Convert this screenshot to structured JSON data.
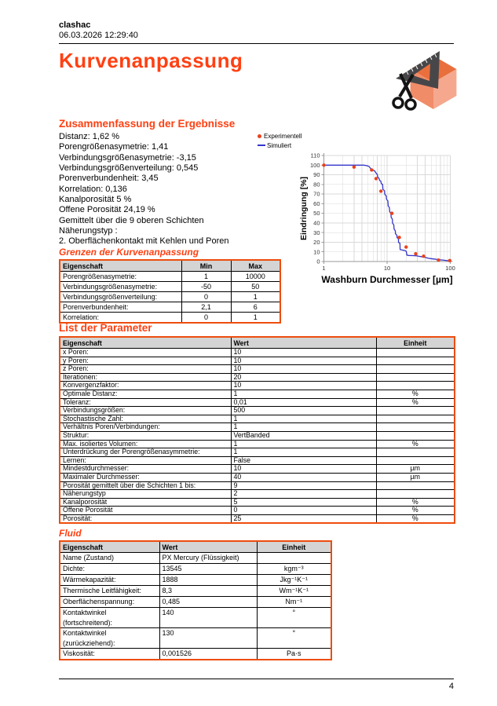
{
  "header": {
    "user": "clashac",
    "datetime": "06.03.2026 12:29:40"
  },
  "title": "Kurvenanpassung",
  "summary": {
    "heading": "Zusammenfassung der Ergebnisse",
    "lines": [
      "Distanz: 1,62 %",
      "Porengrößenasymetrie: 1,41",
      "Verbindungsgrößenasymetrie: -3,15",
      "Verbindungsgrößenverteilung: 0,545",
      "Porenverbundenheit: 3,45",
      "Korrelation: 0,136",
      "Kanalporosität 5 %",
      "Offene Porosität 24,19 %",
      "Gemittelt über die 9 oberen Schichten",
      "Näherungstyp :",
      "2. Oberflächenkontakt mit Kehlen und Poren"
    ]
  },
  "limits_table": {
    "heading": "Grenzen der Kurvenanpassung",
    "columns": [
      "Eigenschaft",
      "Min",
      "Max"
    ],
    "rows": [
      [
        "Porengrößenasymetrie:",
        "1",
        "10000"
      ],
      [
        "Verbindungsgrößenasymetrie:",
        "-50",
        "50"
      ],
      [
        "Verbindungsgrößenverteilung:",
        "0",
        "1"
      ],
      [
        "Porenverbundenheit:",
        "2,1",
        "6"
      ],
      [
        "Korrelation:",
        "0",
        "1"
      ]
    ]
  },
  "params_table": {
    "heading": "List der Parameter",
    "columns": [
      "Eigenschaft",
      "Wert",
      "Einheit"
    ],
    "rows": [
      [
        "x Poren:",
        "10",
        ""
      ],
      [
        "y Poren:",
        "10",
        ""
      ],
      [
        "z Poren:",
        "10",
        ""
      ],
      [
        "Iterationen:",
        "20",
        ""
      ],
      [
        "Konvergenzfaktor:",
        "10",
        ""
      ],
      [
        "Optimale Distanz:",
        "1",
        "%"
      ],
      [
        "Toleranz:",
        "0,01",
        "%"
      ],
      [
        "Verbindungsgrößen:",
        "500",
        ""
      ],
      [
        "Stochastische Zahl:",
        "1",
        ""
      ],
      [
        "Verhältnis Poren/Verbindungen:",
        "1",
        ""
      ],
      [
        "Struktur:",
        "VertBanded",
        ""
      ],
      [
        "Max. isoliertes Volumen:",
        "1",
        "%"
      ],
      [
        "Unterdrückung der Porengrößenasymmetrie:",
        "1",
        ""
      ],
      [
        "Lernen:",
        "False",
        ""
      ],
      [
        "Mindestdurchmesser:",
        "10",
        "µm"
      ],
      [
        "Maximaler Durchmesser:",
        "40",
        "µm"
      ],
      [
        "Porosität gemittelt über die Schichten 1 bis:",
        "9",
        ""
      ],
      [
        "Näherungstyp",
        "2",
        ""
      ],
      [
        "Kanalporosität",
        "5",
        "%"
      ],
      [
        "Offene Porosität",
        "0",
        "%"
      ],
      [
        "Porosität:",
        "25",
        "%"
      ]
    ]
  },
  "fluid_table": {
    "heading": "Fluid",
    "columns": [
      "Eigenschaft",
      "Wert",
      "Einheit"
    ],
    "rows": [
      [
        "Name (Zustand)",
        "PX Mercury (Flüssigkeit)",
        ""
      ],
      [
        "Dichte:",
        "13545",
        "kgm⁻³"
      ],
      [
        "Wärmekapazität:",
        "1888",
        "Jkg⁻¹K⁻¹"
      ],
      [
        "Thermische Leitfähigkeit:",
        "8,3",
        "Wm⁻¹K⁻¹"
      ],
      [
        "Oberflächenspannung:",
        "0,485",
        "Nm⁻¹"
      ],
      [
        "Kontaktwinkel\n(fortschreitend):",
        "140",
        "°"
      ],
      [
        "Kontaktwinkel\n(zurückziehend):",
        "130",
        "°"
      ],
      [
        "Viskosität:",
        "0,001526",
        "Pa·s"
      ]
    ]
  },
  "chart_data": {
    "type": "line",
    "xlabel": "Washburn Durchmesser [µm]",
    "ylabel": "Eindringung [%]",
    "x_scale": "log",
    "xlim": [
      1,
      100
    ],
    "ylim": [
      0,
      110
    ],
    "x_ticks": [
      1,
      10,
      100
    ],
    "y_ticks": [
      0,
      10,
      20,
      30,
      40,
      50,
      60,
      70,
      80,
      90,
      100,
      110
    ],
    "grid": true,
    "legend_position": "top-left-outside",
    "series": [
      {
        "name": "Experimentell",
        "style": "scatter",
        "color": "#e8431c",
        "points": [
          [
            1,
            100
          ],
          [
            3,
            98
          ],
          [
            5.7,
            95
          ],
          [
            6.7,
            86
          ],
          [
            8,
            73
          ],
          [
            11.9,
            50
          ],
          [
            15.6,
            25
          ],
          [
            20,
            15
          ],
          [
            28.4,
            8
          ],
          [
            37.8,
            5.5
          ],
          [
            65,
            1.5
          ],
          [
            98,
            1
          ]
        ]
      },
      {
        "name": "Simuliert",
        "style": "line",
        "color": "#3535cd",
        "points": [
          [
            1,
            100
          ],
          [
            4.3,
            100
          ],
          [
            4.8,
            99.4
          ],
          [
            5.2,
            98.6
          ],
          [
            5.5,
            96.5
          ],
          [
            6,
            95
          ],
          [
            6.4,
            93.8
          ],
          [
            6.6,
            92.3
          ],
          [
            7,
            90.3
          ],
          [
            7.1,
            87.8
          ],
          [
            7.5,
            86
          ],
          [
            7.6,
            84.3
          ],
          [
            8,
            83
          ],
          [
            8.1,
            80.8
          ],
          [
            8.5,
            80
          ],
          [
            8.6,
            74.8
          ],
          [
            9.1,
            73.5
          ],
          [
            9.2,
            69.8
          ],
          [
            9.7,
            68
          ],
          [
            9.8,
            64.6
          ],
          [
            10.3,
            62.8
          ],
          [
            10.4,
            57.8
          ],
          [
            10.9,
            56
          ],
          [
            11,
            51.8
          ],
          [
            11.5,
            49.8
          ],
          [
            11.6,
            45.8
          ],
          [
            12.1,
            44
          ],
          [
            12.2,
            39.8
          ],
          [
            12.8,
            37.8
          ],
          [
            12.9,
            33.8
          ],
          [
            13.5,
            31.8
          ],
          [
            13.6,
            28.8
          ],
          [
            14.3,
            27.3
          ],
          [
            14.4,
            24.8
          ],
          [
            15.1,
            23.8
          ],
          [
            15.2,
            19.8
          ],
          [
            16,
            18.8
          ],
          [
            16.1,
            12.4
          ],
          [
            17,
            12
          ],
          [
            18.6,
            11.6
          ],
          [
            19.6,
            11.2
          ],
          [
            20.1,
            10.6
          ],
          [
            20.6,
            6.6
          ],
          [
            22,
            6.3
          ],
          [
            26,
            6.1
          ],
          [
            30,
            5.8
          ],
          [
            32,
            5.4
          ],
          [
            34,
            5.1
          ],
          [
            38,
            4.6
          ],
          [
            40,
            4.2
          ],
          [
            44,
            3.6
          ],
          [
            48,
            3.1
          ],
          [
            55,
            2.6
          ],
          [
            62,
            2.1
          ],
          [
            70,
            1.7
          ],
          [
            80,
            1.3
          ],
          [
            90,
            0.9
          ],
          [
            100,
            0.5
          ]
        ]
      }
    ]
  },
  "footer": {
    "page": "4"
  },
  "colors": {
    "accent": "#ff4012",
    "table_border": "#ed4d0d",
    "table_header_bg": "#d4d4d4",
    "experimental_dot": "#e8431c",
    "simulated_line": "#3535cd",
    "grid_line": "#d9d9d9",
    "axis_line": "#999999"
  }
}
